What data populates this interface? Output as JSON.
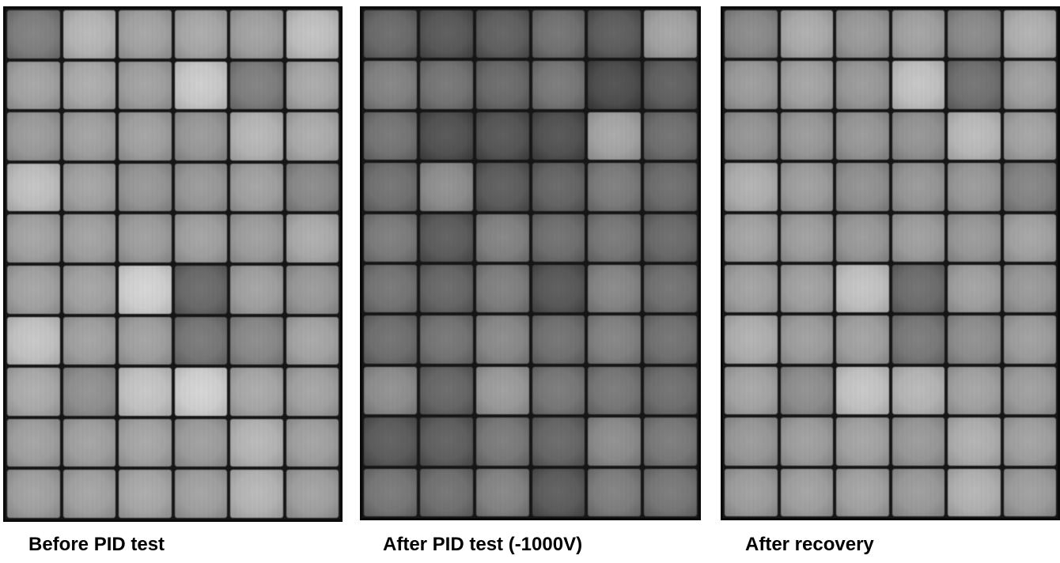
{
  "panels": [
    {
      "id": "before",
      "caption": "Before PID test",
      "grid_rows": 10,
      "grid_cols": 6,
      "cell_gray_levels": [
        [
          125,
          178,
          160,
          165,
          158,
          188
        ],
        [
          160,
          168,
          158,
          198,
          125,
          165
        ],
        [
          152,
          158,
          158,
          150,
          178,
          168
        ],
        [
          188,
          160,
          148,
          150,
          158,
          135
        ],
        [
          160,
          158,
          155,
          158,
          155,
          168
        ],
        [
          160,
          160,
          205,
          105,
          158,
          150
        ],
        [
          192,
          158,
          158,
          118,
          135,
          162
        ],
        [
          168,
          142,
          192,
          205,
          165,
          160
        ],
        [
          158,
          158,
          162,
          155,
          178,
          158
        ],
        [
          158,
          160,
          165,
          158,
          178,
          158
        ]
      ]
    },
    {
      "id": "after-pid",
      "caption": "After PID test (-1000V)",
      "grid_rows": 10,
      "grid_cols": 6,
      "cell_gray_levels": [
        [
          105,
          88,
          95,
          112,
          92,
          160
        ],
        [
          128,
          115,
          105,
          118,
          78,
          95
        ],
        [
          115,
          82,
          85,
          82,
          162,
          110
        ],
        [
          112,
          140,
          92,
          100,
          122,
          108
        ],
        [
          122,
          92,
          128,
          110,
          118,
          105
        ],
        [
          115,
          102,
          125,
          88,
          132,
          112
        ],
        [
          110,
          115,
          135,
          112,
          128,
          112
        ],
        [
          140,
          102,
          152,
          118,
          118,
          110
        ],
        [
          92,
          95,
          120,
          102,
          138,
          120
        ],
        [
          118,
          112,
          130,
          92,
          125,
          118
        ]
      ]
    },
    {
      "id": "after-recovery",
      "caption": "After recovery",
      "grid_rows": 10,
      "grid_cols": 6,
      "cell_gray_levels": [
        [
          135,
          168,
          150,
          158,
          135,
          172
        ],
        [
          152,
          160,
          150,
          190,
          112,
          158
        ],
        [
          145,
          150,
          148,
          145,
          182,
          160
        ],
        [
          172,
          155,
          142,
          148,
          150,
          130
        ],
        [
          160,
          155,
          150,
          155,
          150,
          160
        ],
        [
          158,
          158,
          190,
          108,
          158,
          150
        ],
        [
          172,
          155,
          158,
          120,
          140,
          155
        ],
        [
          162,
          140,
          192,
          178,
          160,
          155
        ],
        [
          150,
          155,
          160,
          150,
          172,
          158
        ],
        [
          155,
          158,
          160,
          152,
          175,
          155
        ]
      ]
    }
  ]
}
